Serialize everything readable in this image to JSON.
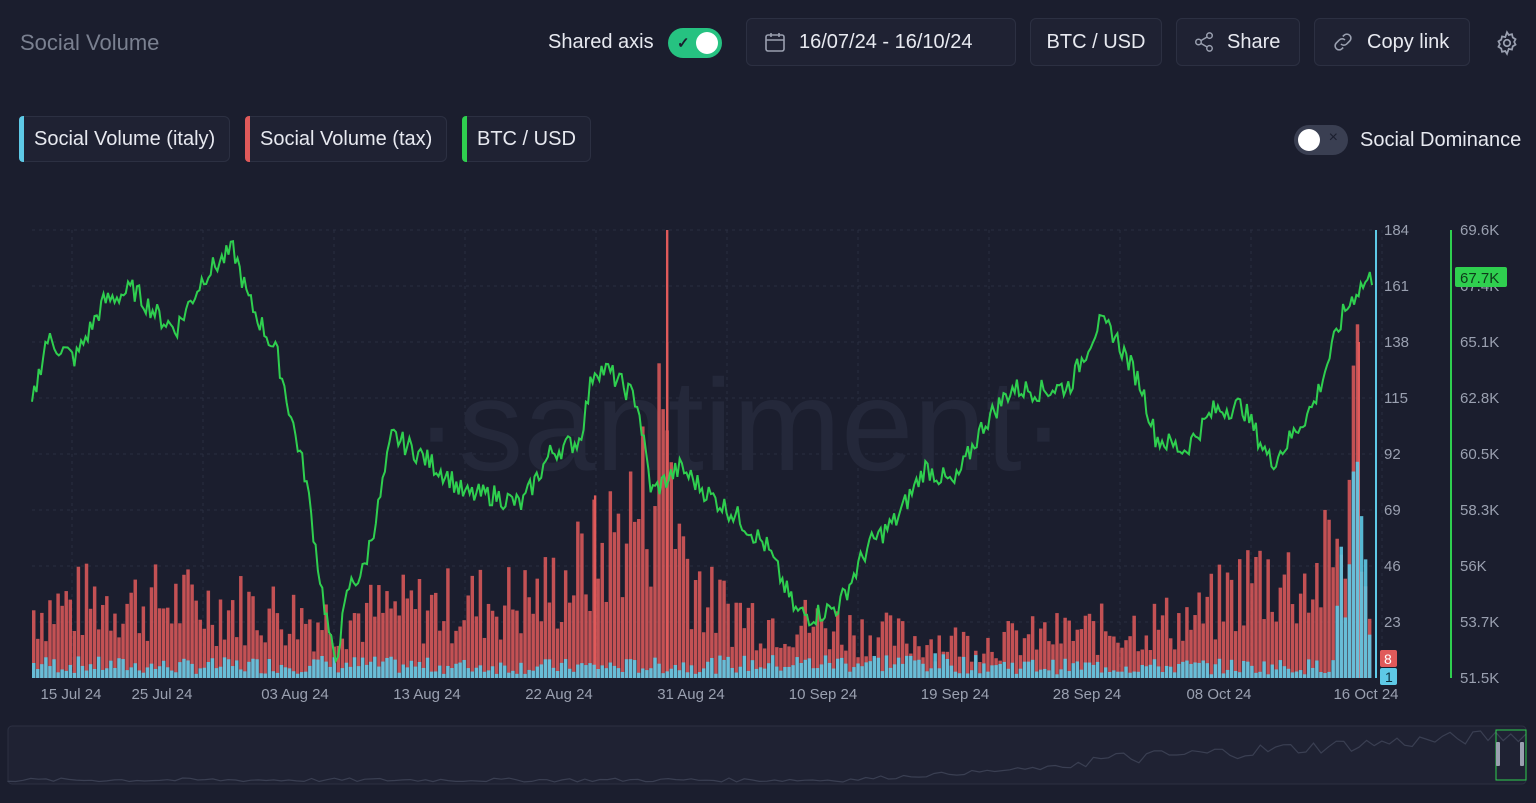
{
  "header": {
    "title": "Social Volume",
    "shared_axis_label": "Shared axis",
    "date_range": "16/07/24 - 16/10/24",
    "pair": "BTC / USD",
    "share_label": "Share",
    "copy_link_label": "Copy link"
  },
  "legend": {
    "items": [
      {
        "label": "Social Volume (italy)",
        "color": "#5ec9e6"
      },
      {
        "label": "Social Volume (tax)",
        "color": "#e05a5a"
      },
      {
        "label": "BTC / USD",
        "color": "#2fcf4f"
      }
    ],
    "dominance_label": "Social Dominance"
  },
  "chart_data": {
    "type": "line",
    "watermark": "·santiment·",
    "x_ticks": [
      "15 Jul 24",
      "25 Jul 24",
      "03 Aug 24",
      "13 Aug 24",
      "22 Aug 24",
      "31 Aug 24",
      "10 Sep 24",
      "19 Sep 24",
      "28 Sep 24",
      "08 Oct 24",
      "16 Oct 24"
    ],
    "y_left_ticks": [
      "184",
      "161",
      "138",
      "115",
      "92",
      "69",
      "46",
      "23"
    ],
    "y_left_range": [
      0,
      184
    ],
    "y_right_ticks": [
      "69.6K",
      "67.4K",
      "65.1K",
      "62.8K",
      "60.5K",
      "58.3K",
      "56K",
      "53.7K",
      "51.5K"
    ],
    "y_right_range": [
      51500,
      69600
    ],
    "current_btc_label": "67.7K",
    "current_tax_label": "8",
    "current_italy_label": "1",
    "x_range": [
      "2024-07-15",
      "2024-10-16"
    ],
    "series": [
      {
        "name": "BTC / USD",
        "color": "#2fcf4f",
        "axis": "right",
        "x": [
          "2024-07-15",
          "2024-07-16",
          "2024-07-18",
          "2024-07-20",
          "2024-07-22",
          "2024-07-24",
          "2024-07-25",
          "2024-07-27",
          "2024-07-29",
          "2024-07-30",
          "2024-08-01",
          "2024-08-02",
          "2024-08-03",
          "2024-08-04",
          "2024-08-05",
          "2024-08-06",
          "2024-08-07",
          "2024-08-08",
          "2024-08-09",
          "2024-08-11",
          "2024-08-13",
          "2024-08-14",
          "2024-08-16",
          "2024-08-18",
          "2024-08-20",
          "2024-08-22",
          "2024-08-23",
          "2024-08-24",
          "2024-08-26",
          "2024-08-27",
          "2024-08-28",
          "2024-08-29",
          "2024-08-31",
          "2024-09-02",
          "2024-09-04",
          "2024-09-06",
          "2024-09-07",
          "2024-09-09",
          "2024-09-11",
          "2024-09-13",
          "2024-09-15",
          "2024-09-17",
          "2024-09-19",
          "2024-09-21",
          "2024-09-23",
          "2024-09-25",
          "2024-09-27",
          "2024-09-28",
          "2024-09-30",
          "2024-10-01",
          "2024-10-03",
          "2024-10-05",
          "2024-10-07",
          "2024-10-09",
          "2024-10-10",
          "2024-10-12",
          "2024-10-14",
          "2024-10-15",
          "2024-10-16"
        ],
        "values": [
          62500,
          65200,
          64400,
          66700,
          67200,
          66000,
          65600,
          67800,
          68800,
          66800,
          64600,
          62000,
          59600,
          55500,
          52000,
          55200,
          55800,
          58300,
          61300,
          60500,
          59600,
          58900,
          58900,
          58500,
          60600,
          61100,
          64000,
          63900,
          62700,
          59000,
          59500,
          60000,
          58900,
          58000,
          56800,
          54200,
          54000,
          54400,
          56800,
          57900,
          60000,
          59300,
          61700,
          63200,
          63100,
          63300,
          65800,
          65500,
          63300,
          61200,
          60700,
          62300,
          62500,
          60200,
          60900,
          62600,
          66200,
          67200,
          67700
        ]
      },
      {
        "name": "Social Volume (tax)",
        "color": "#e05a5a",
        "axis": "left",
        "x": [
          "2024-07-15",
          "2024-07-20",
          "2024-07-25",
          "2024-07-30",
          "2024-08-04",
          "2024-08-09",
          "2024-08-14",
          "2024-08-19",
          "2024-08-23",
          "2024-08-27",
          "2024-08-28",
          "2024-08-29",
          "2024-08-31",
          "2024-09-04",
          "2024-09-09",
          "2024-09-14",
          "2024-09-19",
          "2024-09-24",
          "2024-09-29",
          "2024-10-04",
          "2024-10-08",
          "2024-10-12",
          "2024-10-14",
          "2024-10-15",
          "2024-10-16"
        ],
        "values": [
          35,
          40,
          38,
          36,
          30,
          34,
          38,
          40,
          60,
          95,
          140,
          70,
          38,
          30,
          26,
          20,
          18,
          22,
          26,
          30,
          52,
          48,
          70,
          138,
          8
        ]
      },
      {
        "name": "Social Volume (italy)",
        "color": "#5ec9e6",
        "axis": "left",
        "x": [
          "2024-07-15",
          "2024-07-25",
          "2024-08-04",
          "2024-08-14",
          "2024-08-24",
          "2024-09-03",
          "2024-09-13",
          "2024-09-23",
          "2024-10-03",
          "2024-10-13",
          "2024-10-15",
          "2024-10-16"
        ],
        "values": [
          6,
          5,
          6,
          5,
          5,
          6,
          7,
          5,
          5,
          5,
          75,
          1
        ]
      }
    ]
  }
}
